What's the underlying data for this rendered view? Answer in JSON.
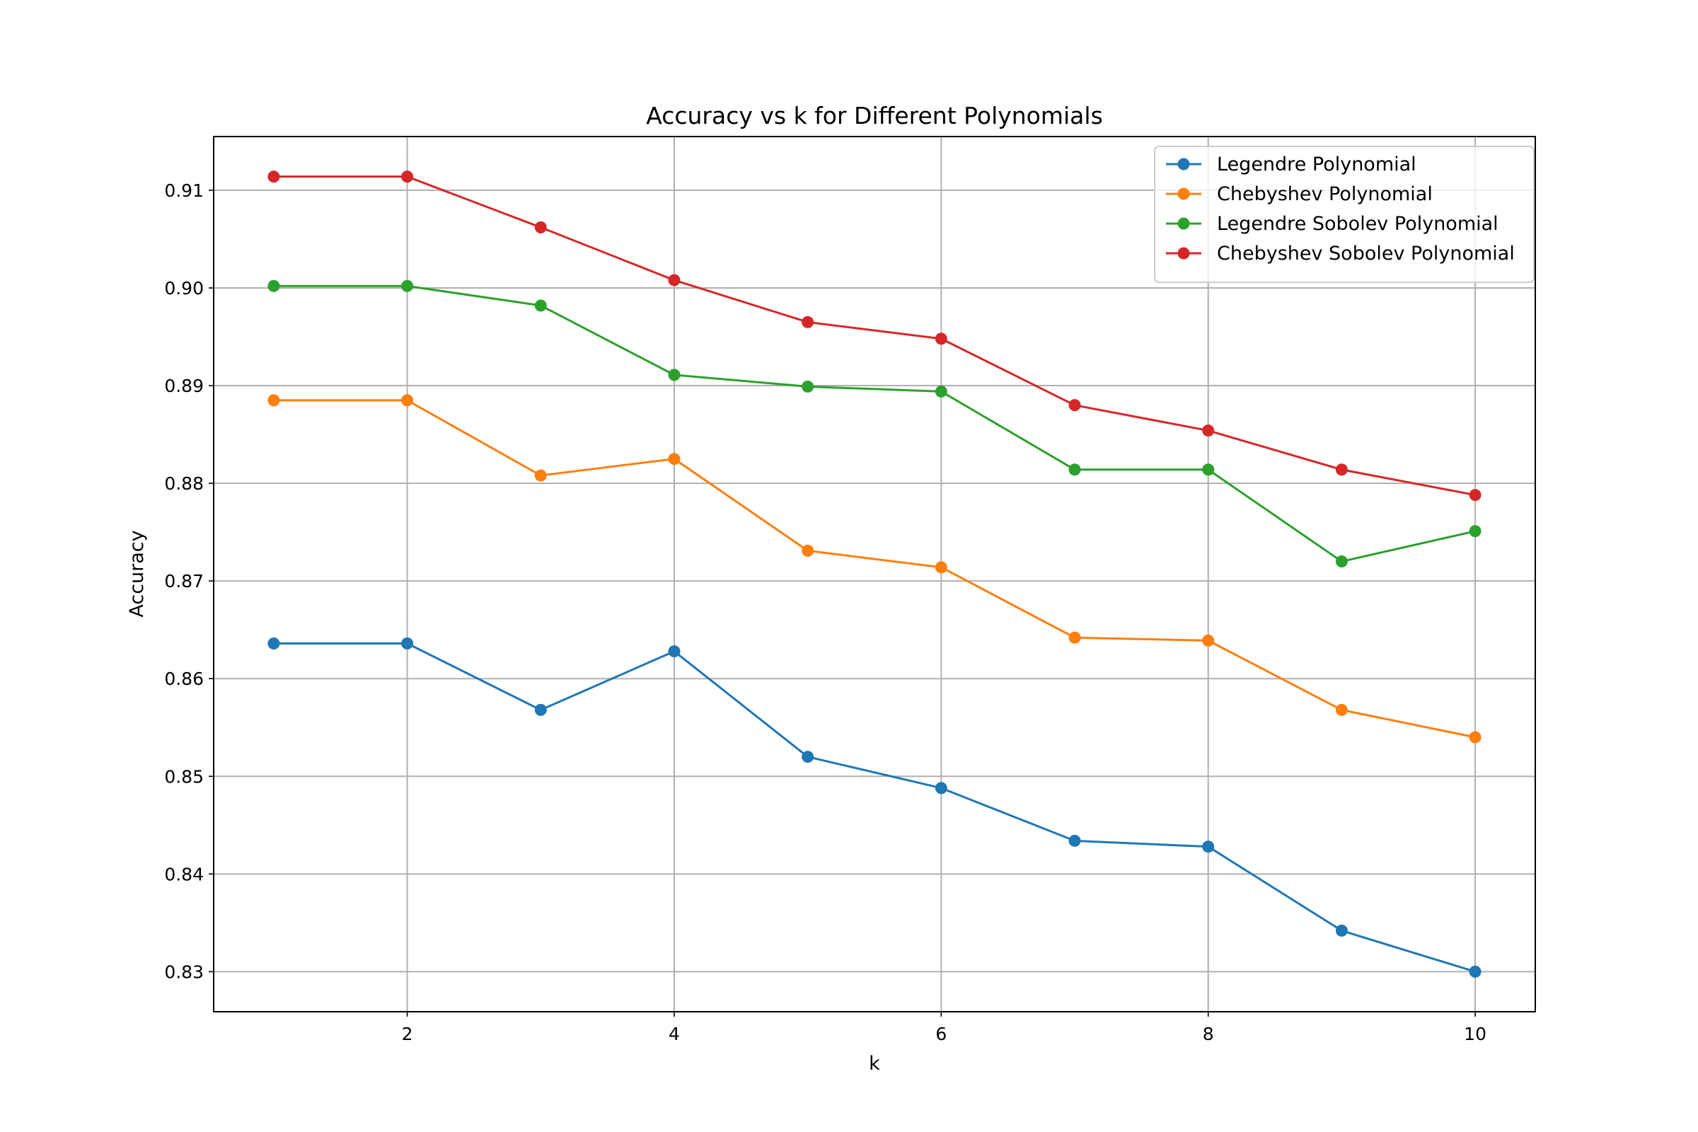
{
  "chart_data": {
    "type": "line",
    "title": "Accuracy vs k for Different Polynomials",
    "xlabel": "k",
    "ylabel": "Accuracy",
    "x": [
      1,
      2,
      3,
      4,
      5,
      6,
      7,
      8,
      9,
      10
    ],
    "xlim": [
      0.55,
      10.45
    ],
    "ylim": [
      0.8259,
      0.9155
    ],
    "xticks": [
      2,
      4,
      6,
      8,
      10
    ],
    "xtick_labels": [
      "2",
      "4",
      "6",
      "8",
      "10"
    ],
    "yticks": [
      0.83,
      0.84,
      0.85,
      0.86,
      0.87,
      0.88,
      0.89,
      0.9,
      0.91
    ],
    "ytick_labels": [
      "0.83",
      "0.84",
      "0.85",
      "0.86",
      "0.87",
      "0.88",
      "0.89",
      "0.90",
      "0.91"
    ],
    "grid": true,
    "legend_position": "top-right",
    "markers": "circle",
    "series": [
      {
        "name": "Legendre Polynomial",
        "color": "#1f77b4",
        "values": [
          0.8636,
          0.8636,
          0.8568,
          0.8628,
          0.852,
          0.8488,
          0.8434,
          0.8428,
          0.8342,
          0.83
        ]
      },
      {
        "name": "Chebyshev Polynomial",
        "color": "#ff7f0e",
        "values": [
          0.8885,
          0.8885,
          0.8808,
          0.8825,
          0.8731,
          0.8714,
          0.8642,
          0.8639,
          0.8568,
          0.854
        ]
      },
      {
        "name": "Legendre Sobolev Polynomial",
        "color": "#2ca02c",
        "values": [
          0.9002,
          0.9002,
          0.8982,
          0.8911,
          0.8899,
          0.8894,
          0.8814,
          0.8814,
          0.872,
          0.8751
        ]
      },
      {
        "name": "Chebyshev Sobolev Polynomial",
        "color": "#d62728",
        "values": [
          0.9114,
          0.9114,
          0.9062,
          0.9008,
          0.8965,
          0.8948,
          0.888,
          0.8854,
          0.8814,
          0.8788
        ]
      }
    ]
  }
}
